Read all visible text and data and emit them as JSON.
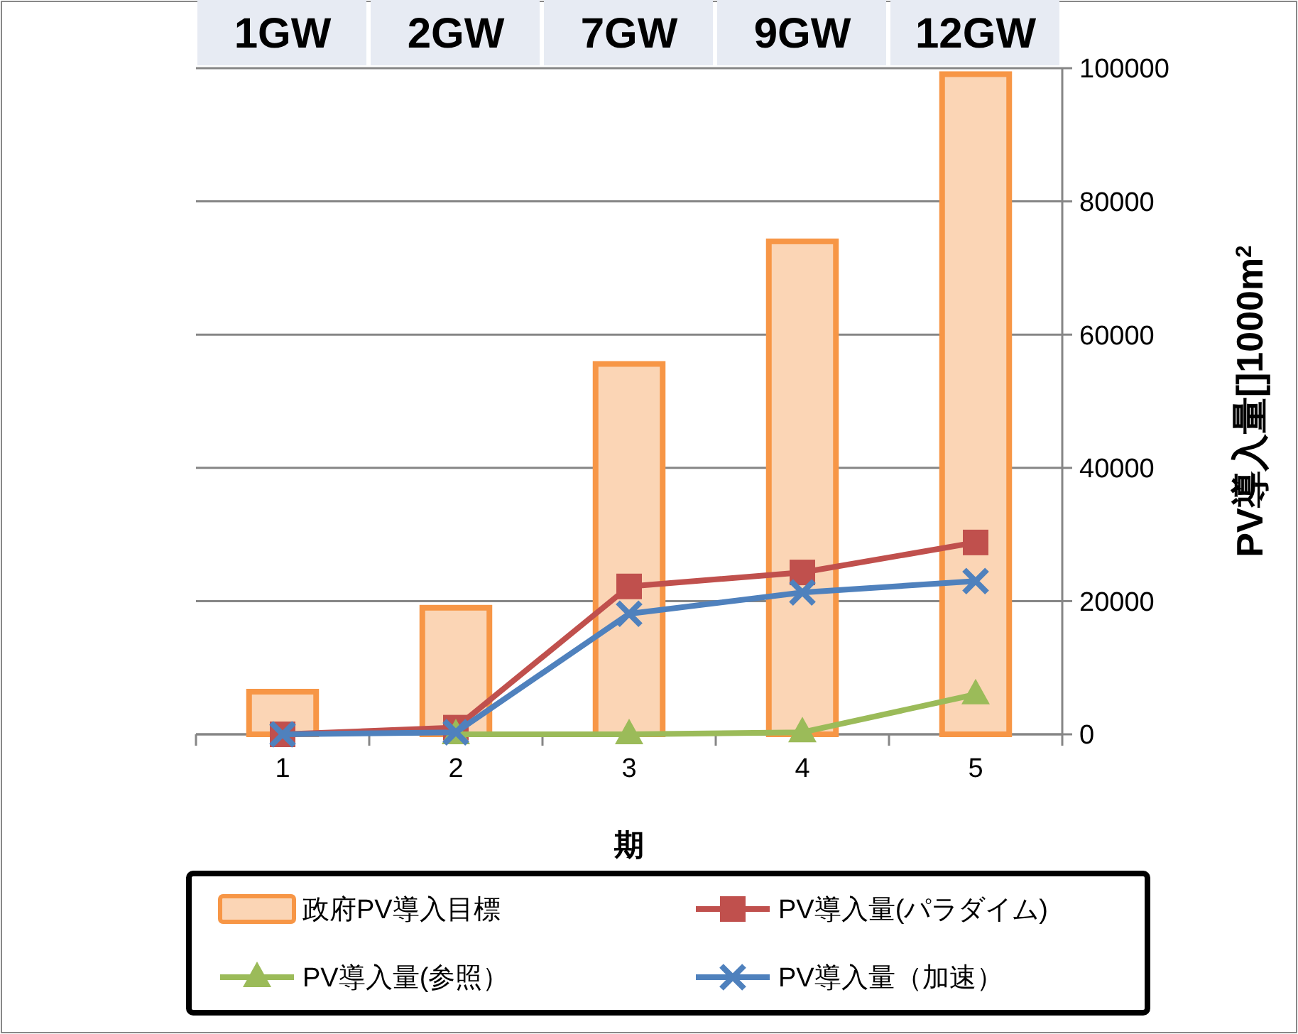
{
  "chart_data": {
    "type": "bar",
    "xlabel": "期",
    "ylabel": "PV導入量[]1000m$^{2}$",
    "categories": [
      "1",
      "2",
      "3",
      "4",
      "5"
    ],
    "series": [
      {
        "name": "政府PV導入目標",
        "color": "#f79646",
        "values": [
          6400,
          19000,
          55600,
          74000,
          99100
        ]
      },
      {
        "name": "PV導入量(パラダイム)",
        "type": "line",
        "color": "#c0504d",
        "marker": "square",
        "values": [
          0,
          1000,
          22200,
          24300,
          28800
        ]
      },
      {
        "name": "PV導入量(参照）",
        "type": "line",
        "color": "#9bbb59",
        "marker": "triangle",
        "values": [
          null,
          0,
          0,
          300,
          6000
        ]
      },
      {
        "name": "PV導入量（加速）",
        "type": "line",
        "color": "#4f81bd",
        "marker": "cross",
        "values": [
          0,
          300,
          18100,
          21300,
          23000
        ]
      }
    ],
    "annotations": [
      "1GW",
      "2GW",
      "7GW",
      "9GW",
      "12GW"
    ],
    "ylim": [
      0,
      100000
    ],
    "yticks": [
      0,
      20000,
      40000,
      60000,
      80000,
      100000
    ],
    "grid": "y",
    "legend": "bottom"
  }
}
